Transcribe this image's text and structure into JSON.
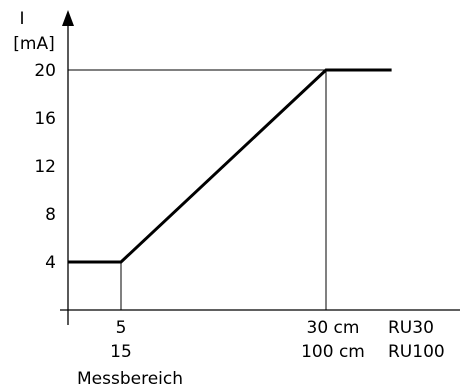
{
  "chart_data": {
    "type": "line",
    "ylabel": "I",
    "yunit": "[mA]",
    "yticks": [
      4,
      8,
      12,
      16,
      20
    ],
    "ylim": [
      0,
      24
    ],
    "x_ticks_ru30": [
      "5",
      "30 cm"
    ],
    "x_ticks_ru100": [
      "15",
      "100 cm"
    ],
    "series_labels": [
      "RU30",
      "RU100"
    ],
    "xlabel": "Messbereich",
    "xlim": [
      0,
      42
    ],
    "series": [
      {
        "x": [
          0,
          5,
          30,
          38
        ],
        "y": [
          4,
          4,
          20,
          20
        ]
      }
    ],
    "reference_x": [
      5,
      30
    ],
    "reference_y": 20,
    "grid": false
  }
}
